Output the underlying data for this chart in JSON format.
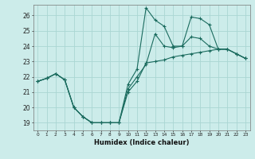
{
  "xlabel": "Humidex (Indice chaleur)",
  "background_color": "#ccecea",
  "grid_color": "#aad6d3",
  "line_color": "#1a6b5e",
  "xlim": [
    -0.5,
    23.5
  ],
  "ylim": [
    18.5,
    26.7
  ],
  "xticks": [
    0,
    1,
    2,
    3,
    4,
    5,
    6,
    7,
    8,
    9,
    10,
    11,
    12,
    13,
    14,
    15,
    16,
    17,
    18,
    19,
    20,
    21,
    22,
    23
  ],
  "yticks": [
    19,
    20,
    21,
    22,
    23,
    24,
    25,
    26
  ],
  "series1_x": [
    0,
    1,
    2,
    3,
    4,
    5,
    6,
    7,
    8,
    9,
    10,
    11,
    12,
    13,
    14,
    15,
    16,
    17,
    18,
    19,
    20,
    21,
    22,
    23
  ],
  "series1_y": [
    21.7,
    21.9,
    22.2,
    21.8,
    20.0,
    19.4,
    19.0,
    19.0,
    19.0,
    19.0,
    21.0,
    21.7,
    22.9,
    23.0,
    23.1,
    23.3,
    23.4,
    23.5,
    23.6,
    23.7,
    23.8,
    23.8,
    23.5,
    23.2
  ],
  "series2_x": [
    0,
    1,
    2,
    3,
    4,
    5,
    6,
    7,
    8,
    9,
    10,
    11,
    12,
    13,
    14,
    15,
    16,
    17,
    18,
    19,
    20,
    21,
    22,
    23
  ],
  "series2_y": [
    21.7,
    21.9,
    22.2,
    21.8,
    20.0,
    19.4,
    19.0,
    19.0,
    19.0,
    19.0,
    21.5,
    22.5,
    26.5,
    25.7,
    25.3,
    24.0,
    24.0,
    25.9,
    25.8,
    25.4,
    23.8,
    23.8,
    23.5,
    23.2
  ],
  "series3_x": [
    0,
    1,
    2,
    3,
    4,
    5,
    6,
    7,
    8,
    9,
    10,
    11,
    12,
    13,
    14,
    15,
    16,
    17,
    18,
    19,
    20,
    21,
    22,
    23
  ],
  "series3_y": [
    21.7,
    21.9,
    22.2,
    21.8,
    20.0,
    19.4,
    19.0,
    19.0,
    19.0,
    19.0,
    21.2,
    22.0,
    22.8,
    24.8,
    24.0,
    23.9,
    24.0,
    24.6,
    24.5,
    24.0,
    23.8,
    23.8,
    23.5,
    23.2
  ]
}
